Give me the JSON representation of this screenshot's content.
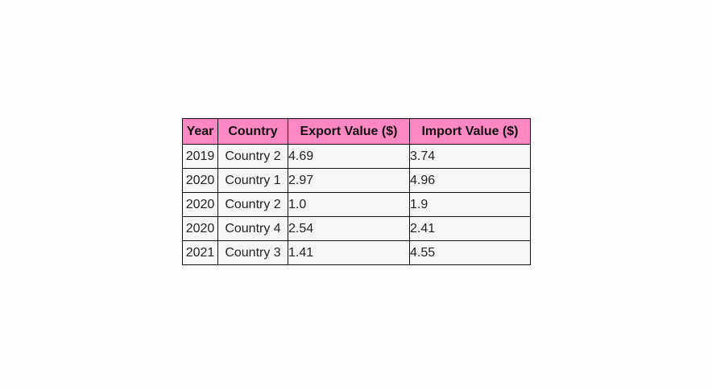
{
  "colors": {
    "header_bg": "#ff87c4",
    "cell_bg": "#f6f6f6",
    "border": "#111111",
    "page_bg": "#fdfdfd"
  },
  "chart_data": {
    "type": "table",
    "columns": [
      "Year",
      "Country",
      "Export Value ($)",
      "Import Value ($)"
    ],
    "rows": [
      [
        "2019",
        "Country 2",
        "4.69",
        "3.74"
      ],
      [
        "2020",
        "Country 1",
        "2.97",
        "4.96"
      ],
      [
        "2020",
        "Country 2",
        "1.0",
        "1.9"
      ],
      [
        "2020",
        "Country 4",
        "2.54",
        "2.41"
      ],
      [
        "2021",
        "Country 3",
        "1.41",
        "4.55"
      ]
    ]
  }
}
